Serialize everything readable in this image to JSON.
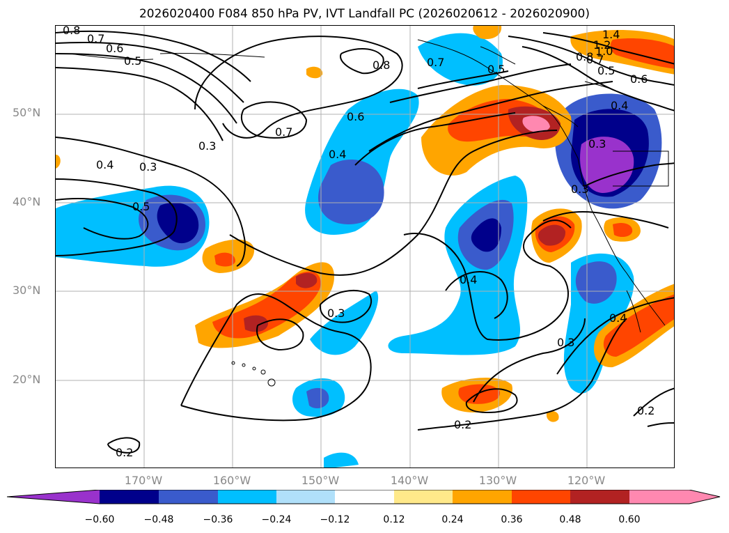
{
  "title": "2026020400 F084 850 hPa PV, IVT Landfall PC (2026020612 - 2026020900)",
  "axes": {
    "lat_labels": [
      "50°N",
      "40°N",
      "30°N",
      "20°N"
    ],
    "lon_labels": [
      "170°W",
      "160°W",
      "150°W",
      "140°W",
      "130°W",
      "120°W"
    ]
  },
  "colorbar": {
    "ticks": [
      "−0.60",
      "−0.48",
      "−0.36",
      "−0.24",
      "−0.12",
      "0.12",
      "0.24",
      "0.36",
      "0.48",
      "0.60"
    ],
    "colors": [
      "#9932cc",
      "#00008b",
      "#3a5bcc",
      "#00bfff",
      "#b0e0fa",
      "#ffffff",
      "#ffe98a",
      "#ffa500",
      "#ff4500",
      "#b22222",
      "#ff88b0"
    ],
    "extend": "both"
  },
  "contour_labels": [
    "0.8",
    "0.7",
    "0.6",
    "0.5",
    "0.8",
    "0.7",
    "0.6",
    "0.4",
    "0.3",
    "0.4",
    "0.3",
    "0.5",
    "0.3",
    "0.4",
    "0.3",
    "0.2",
    "0.2",
    "0.2",
    "1.4",
    "1.2",
    "1.0",
    "0.8",
    "0.7",
    "0.5",
    "0.6",
    "0.4",
    "0.3",
    "0.3",
    "0.4",
    "0.5",
    "0.7"
  ]
}
